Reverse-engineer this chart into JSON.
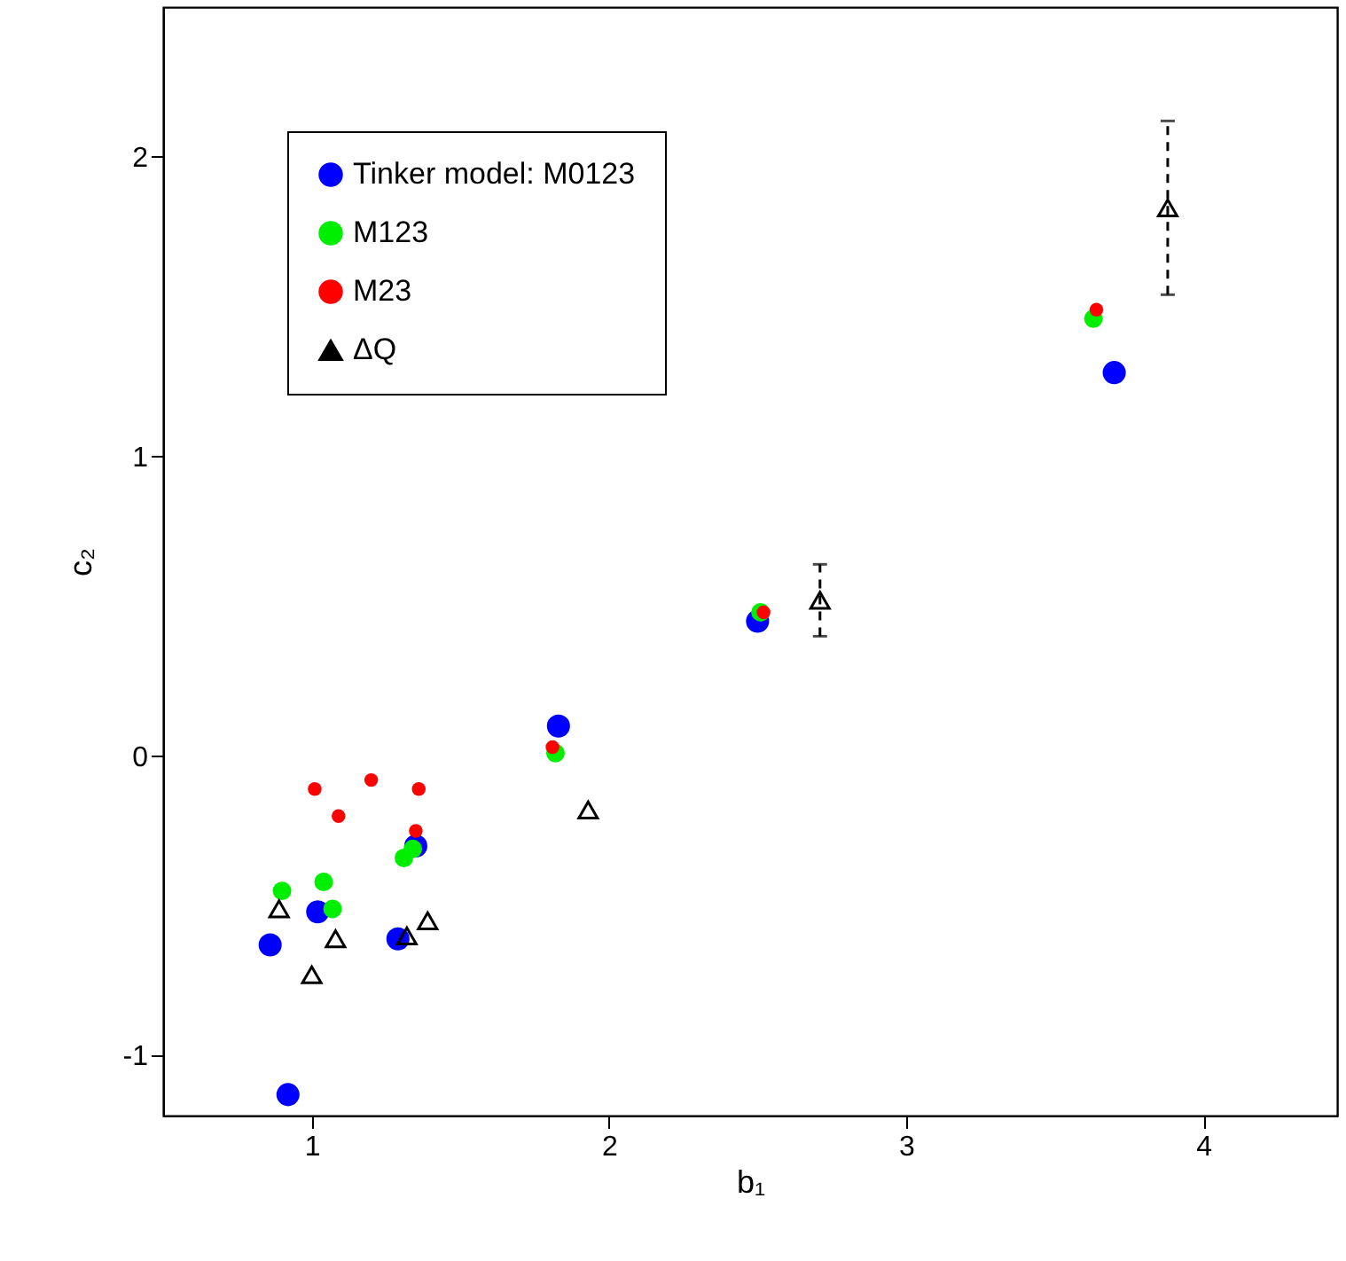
{
  "chart_data": {
    "type": "scatter",
    "xlabel": "b₁",
    "ylabel": "c₂",
    "xlim": [
      0.5,
      4.45
    ],
    "ylim": [
      -1.2,
      2.5
    ],
    "xticks": [
      1,
      2,
      3,
      4
    ],
    "yticks": [
      -1,
      0,
      1,
      2
    ],
    "grid": false,
    "legend": "top left",
    "marker": "circle",
    "series": [
      {
        "name": "Tinker model: M0123",
        "color": "#0000ff",
        "x": [
          0.86,
          0.92,
          1.02,
          1.35,
          1.29,
          1.83,
          2.5,
          3.7
        ],
        "values": [
          -0.63,
          -1.13,
          -0.52,
          -0.3,
          -0.61,
          0.1,
          0.45,
          1.28
        ]
      },
      {
        "name": "M123",
        "color": "#00ee00",
        "x": [
          0.9,
          1.04,
          1.07,
          1.31,
          1.34,
          1.82,
          2.51,
          3.63
        ],
        "values": [
          -0.45,
          -0.42,
          -0.51,
          -0.34,
          -0.31,
          0.01,
          0.48,
          1.46
        ]
      },
      {
        "name": "M23",
        "color": "#ff0000",
        "x": [
          1.01,
          1.09,
          1.2,
          1.36,
          1.35,
          1.81,
          2.52,
          3.64
        ],
        "values": [
          -0.11,
          -0.2,
          -0.08,
          -0.11,
          -0.25,
          0.03,
          0.48,
          1.49
        ]
      },
      {
        "name": "ΔQ",
        "color": "#000000",
        "marker": "triangle",
        "line_style": "dashed",
        "x": [
          0.89,
          1.0,
          1.08,
          1.32,
          1.39,
          1.93,
          2.71,
          3.88
        ],
        "values": [
          -0.51,
          -0.73,
          -0.61,
          -0.6,
          -0.55,
          -0.18,
          0.52,
          1.83
        ],
        "errors": [
          null,
          null,
          null,
          null,
          null,
          null,
          0.12,
          0.29
        ]
      }
    ]
  }
}
